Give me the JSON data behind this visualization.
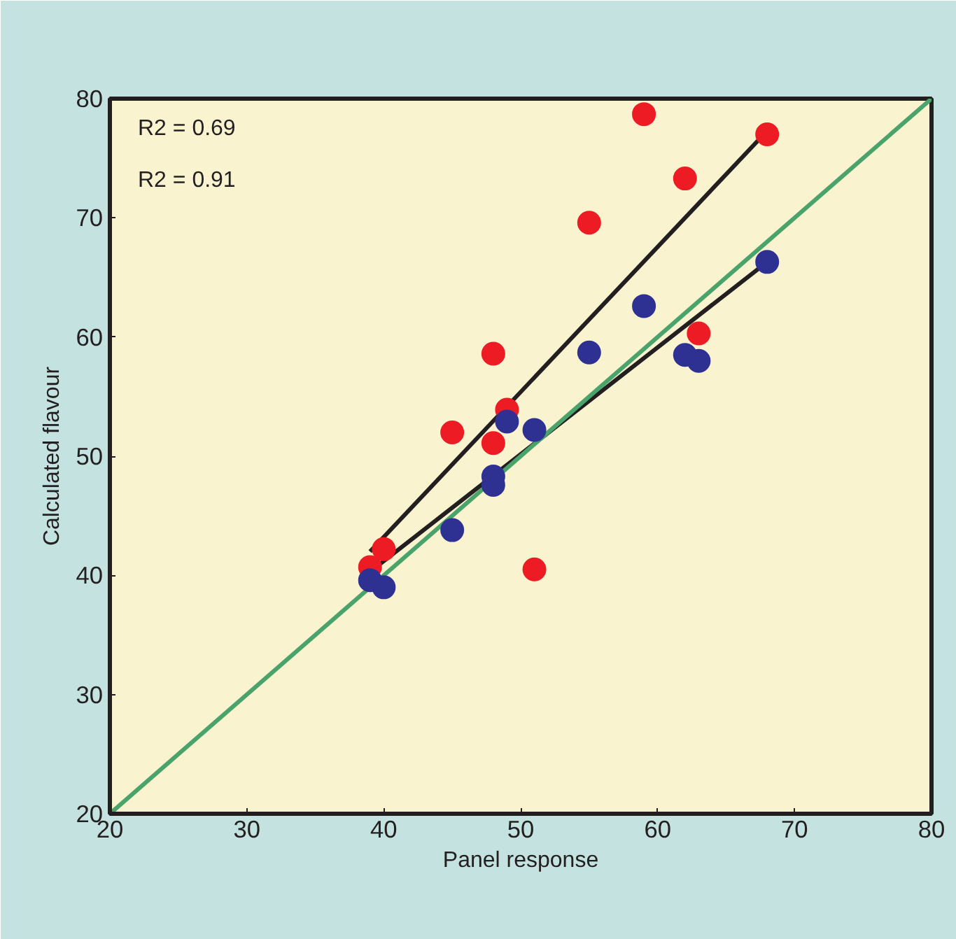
{
  "chart_data": {
    "type": "scatter",
    "xlabel": "Panel response",
    "ylabel": "Calculated flavour",
    "xlim": [
      20,
      80
    ],
    "ylim": [
      20,
      80
    ],
    "xticks": [
      20,
      30,
      40,
      50,
      60,
      70,
      80
    ],
    "yticks": [
      20,
      30,
      40,
      50,
      60,
      70,
      80
    ],
    "grid": false,
    "annotations": [
      "R2 = 0.69",
      "R2 = 0.91"
    ],
    "series": [
      {
        "color": "#ed1c24",
        "marker": "circle",
        "x": [
          39,
          40,
          45,
          48,
          48,
          49,
          51,
          55,
          59,
          62,
          63,
          68
        ],
        "values": [
          40.7,
          42.2,
          52.0,
          51.1,
          58.6,
          53.9,
          40.5,
          69.6,
          78.7,
          73.3,
          60.3,
          77.0
        ]
      },
      {
        "color": "#2e3192",
        "marker": "circle",
        "x": [
          39,
          40,
          45,
          48,
          48,
          49,
          51,
          55,
          59,
          62,
          63,
          68
        ],
        "values": [
          39.6,
          39.0,
          43.8,
          48.3,
          47.6,
          52.9,
          52.2,
          58.7,
          62.6,
          58.5,
          58.0,
          66.3
        ]
      },
      {
        "type": "line",
        "color": "#231f20",
        "x": [
          39,
          68
        ],
        "values": [
          42.0,
          77.3
        ]
      },
      {
        "type": "line",
        "color": "#231f20",
        "x": [
          39,
          68
        ],
        "values": [
          40.3,
          66.3
        ]
      },
      {
        "type": "line",
        "color": "#4aa36b",
        "x": [
          20,
          80
        ],
        "values": [
          20,
          80
        ]
      }
    ]
  }
}
